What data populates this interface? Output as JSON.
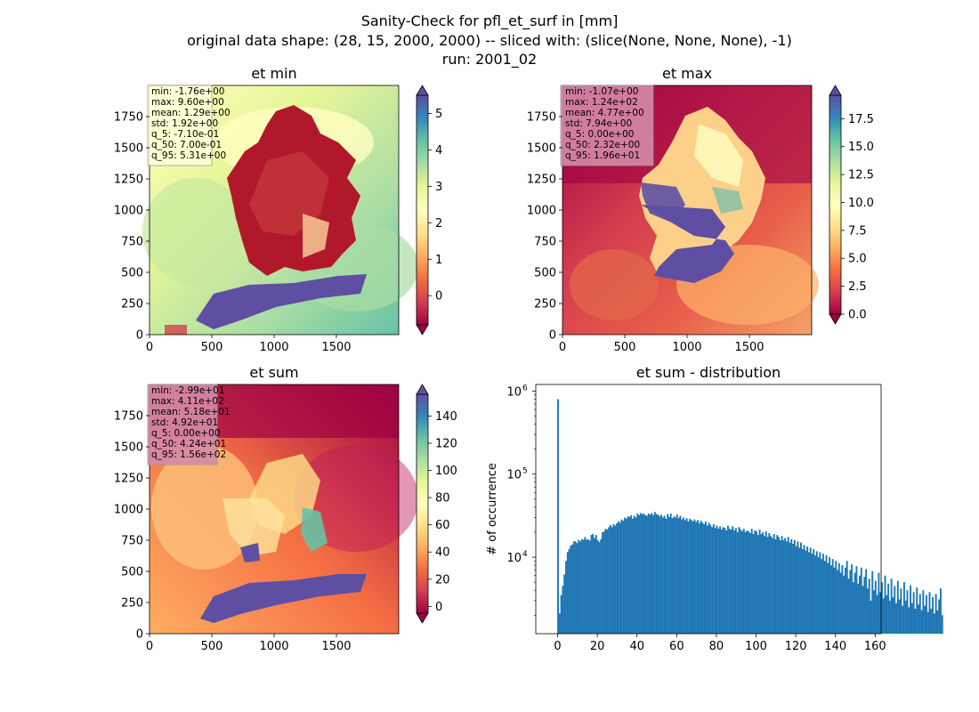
{
  "figure": {
    "title_lines": [
      "Sanity-Check for pfl_et_surf in [mm]",
      "original data shape: (28, 15, 2000, 2000) -- sliced with: (slice(None, None, None), -1)",
      "run: 2001_02"
    ]
  },
  "colors": {
    "spectral": [
      "#9e0142",
      "#d53e4f",
      "#f46d43",
      "#fdae61",
      "#fee08b",
      "#ffffbf",
      "#e6f598",
      "#abdda4",
      "#66c2a5",
      "#3288bd",
      "#5e4fa2"
    ],
    "hist_bar": "#1f77b4",
    "stat_box_light": "#ffffd9",
    "stat_box_dark": "#d68aa8",
    "land_low": "#9e0142",
    "blue_band": "#5e4fa2"
  },
  "chart_data": [
    {
      "id": "et-min",
      "type": "heatmap",
      "title": "et min",
      "x_ticks": [
        0,
        500,
        1000,
        1500
      ],
      "y_ticks": [
        0,
        250,
        500,
        750,
        1000,
        1250,
        1500,
        1750
      ],
      "xlim": [
        0,
        2000
      ],
      "ylim": [
        0,
        2000
      ],
      "colorbar": {
        "vmin": -0.8,
        "vmax": 5.5,
        "ticks": [
          0,
          1,
          2,
          3,
          4,
          5
        ],
        "extend": "both",
        "cmap": "Spectral"
      },
      "stats_box": [
        "min: -1.76e+00",
        "max: 9.60e+00",
        "mean: 1.29e+00",
        "std: 1.92e+00",
        "q_5: -7.10e-01",
        "q_50: 7.00e-01",
        "q_95: 5.31e+00"
      ]
    },
    {
      "id": "et-max",
      "type": "heatmap",
      "title": "et max",
      "x_ticks": [
        0,
        500,
        1000,
        1500
      ],
      "y_ticks": [
        0,
        250,
        500,
        750,
        1000,
        1250,
        1500,
        1750
      ],
      "xlim": [
        0,
        2000
      ],
      "ylim": [
        0,
        2000
      ],
      "colorbar": {
        "vmin": 0,
        "vmax": 19.6,
        "ticks": [
          "0.0",
          "2.5",
          "5.0",
          "7.5",
          "10.0",
          "12.5",
          "15.0",
          "17.5"
        ],
        "extend": "both",
        "cmap": "Spectral"
      },
      "stats_box": [
        "min: -1.07e+00",
        "max: 1.24e+02",
        "mean: 4.77e+00",
        "std: 7.94e+00",
        "q_5: 0.00e+00",
        "q_50: 2.32e+00",
        "q_95: 1.96e+01"
      ]
    },
    {
      "id": "et-sum",
      "type": "heatmap",
      "title": "et sum",
      "x_ticks": [
        0,
        500,
        1000,
        1500
      ],
      "y_ticks": [
        0,
        250,
        500,
        750,
        1000,
        1250,
        1500,
        1750
      ],
      "xlim": [
        0,
        2000
      ],
      "ylim": [
        0,
        2000
      ],
      "colorbar": {
        "vmin": -5,
        "vmax": 156,
        "ticks": [
          0,
          20,
          40,
          60,
          80,
          100,
          120,
          140
        ],
        "extend": "both",
        "cmap": "Spectral"
      },
      "stats_box": [
        "min: -2.99e+01",
        "max: 4.11e+02",
        "mean: 5.18e+01",
        "std: 4.92e+01",
        "q_5: 0.00e+00",
        "q_50: 4.24e+01",
        "q_95: 1.56e+02"
      ]
    },
    {
      "id": "et-sum-distribution",
      "type": "bar",
      "title": "et sum - distribution",
      "ylabel": "# of occurrence",
      "yscale": "log",
      "xlim": [
        -11,
        163
      ],
      "ylim": [
        1200,
        1200000
      ],
      "x_ticks": [
        0,
        20,
        40,
        60,
        80,
        100,
        120,
        140,
        160
      ],
      "y_ticks": [
        {
          "value": 10000,
          "label": "10",
          "exp": "4"
        },
        {
          "value": 100000,
          "label": "10",
          "exp": "5"
        },
        {
          "value": 1000000,
          "label": "10",
          "exp": "6"
        }
      ],
      "bins": {
        "start": -1,
        "width": 0.8
      },
      "counts": [
        0,
        800000,
        2100,
        3500,
        4500,
        6200,
        9000,
        11500,
        12500,
        13800,
        14200,
        15500,
        15500,
        14800,
        16200,
        15500,
        16500,
        16200,
        17500,
        16200,
        16500,
        15800,
        18500,
        19000,
        17000,
        18500,
        16000,
        15200,
        16500,
        20000,
        20500,
        22000,
        21500,
        23000,
        24500,
        23000,
        25000,
        24000,
        25500,
        27000,
        26000,
        28500,
        27500,
        30000,
        29000,
        31000,
        30500,
        32000,
        29000,
        31500,
        30000,
        33500,
        32000,
        34000,
        33000,
        33500,
        32000,
        31500,
        33500,
        32500,
        34000,
        32000,
        35000,
        33000,
        32500,
        31000,
        32500,
        30000,
        31500,
        29000,
        33000,
        30500,
        33500,
        29500,
        31000,
        30000,
        32500,
        29500,
        31500,
        28500,
        30000,
        28000,
        29500,
        27000,
        29000,
        28000,
        27000,
        28500,
        26500,
        28000,
        25500,
        27500,
        26000,
        25000,
        27000,
        24000,
        26000,
        24500,
        23000,
        25000,
        22500,
        24000,
        22000,
        23500,
        21500,
        23000,
        22500,
        21000,
        24000,
        22000,
        21500,
        23500,
        21000,
        22500,
        20000,
        23000,
        21500,
        20500,
        22000,
        20000,
        21000,
        20500,
        19500,
        22000,
        19000,
        21000,
        20500,
        18500,
        21500,
        19000,
        20000,
        18000,
        20500,
        17500,
        19500,
        18000,
        17000,
        19000,
        16500,
        18500,
        17500,
        16000,
        18000,
        16000,
        17000,
        15500,
        17500,
        15000,
        16500,
        14500,
        16000,
        13500,
        15500,
        13000,
        15000,
        12500,
        14000,
        12000,
        13500,
        11500,
        13000,
        11000,
        12500,
        10500,
        11800,
        10000,
        11500,
        9500,
        11000,
        9000,
        10500,
        8500,
        10000,
        8000,
        9500,
        7500,
        9000,
        7000,
        8500,
        6500,
        8000,
        6000,
        7500,
        9000,
        5500,
        7000,
        8200,
        5000,
        6500,
        7800,
        4800,
        6000,
        7500,
        4500,
        5800,
        7200,
        4200,
        5500,
        3000,
        6800,
        4000,
        5200,
        3500,
        6500,
        3800,
        5000,
        3200,
        6000,
        3500,
        4800,
        3000,
        5500,
        3300,
        4500,
        2800,
        5200,
        3100,
        4200,
        2600,
        5000,
        3000,
        4000,
        2500,
        4600,
        2800,
        3800,
        2400,
        4300,
        2700,
        3600,
        2300,
        4000,
        2600,
        3500,
        2200,
        3800,
        2400,
        3300,
        2100,
        3600,
        2300,
        3100,
        4200,
        2000
      ]
    }
  ]
}
